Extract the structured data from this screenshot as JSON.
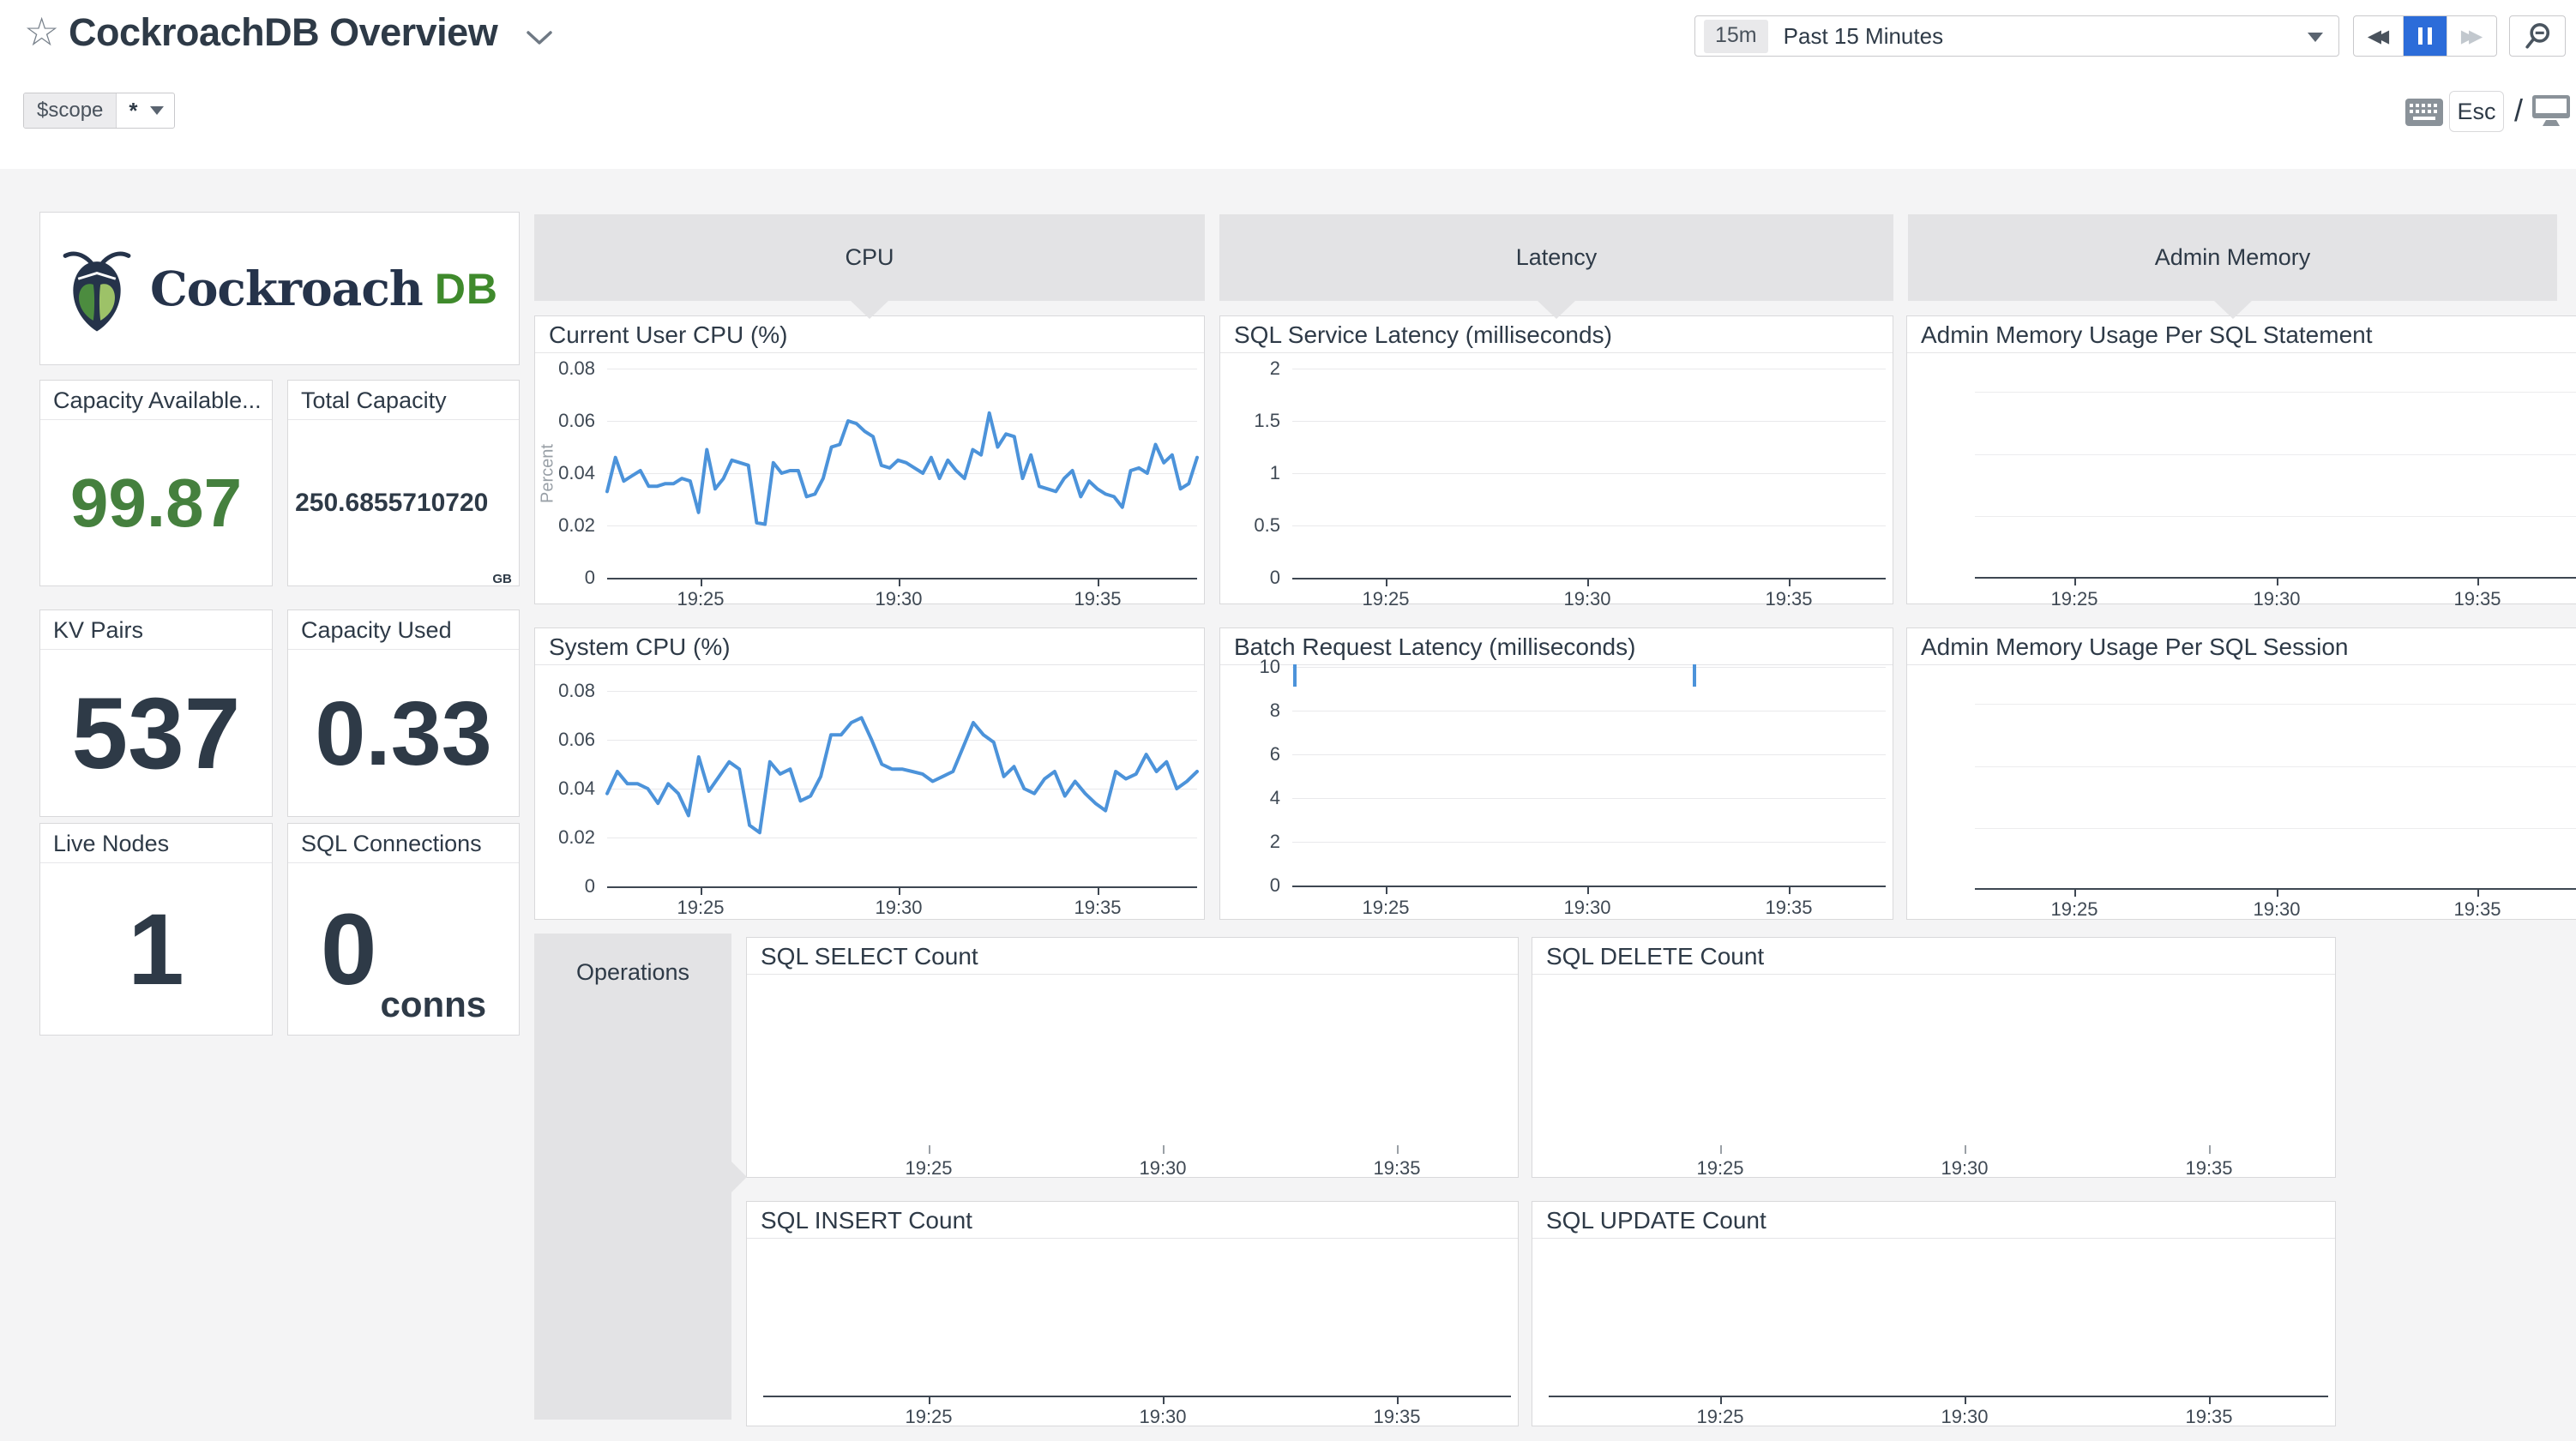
{
  "header": {
    "title": "CockroachDB Overview",
    "time_range": {
      "badge": "15m",
      "label": "Past 15 Minutes"
    },
    "shortcuts": {
      "esc": "Esc",
      "slash": "/"
    },
    "template_var": {
      "name": "$scope",
      "value": "*"
    }
  },
  "icons": {
    "star": "☆",
    "rewind": "◀◀",
    "fast_forward": "▶▶"
  },
  "logo": {
    "brand": "Cockroach",
    "suffix": "DB"
  },
  "stat_cards": [
    {
      "title": "Capacity Available...",
      "value": "99.87",
      "unit": ""
    },
    {
      "title": "Total Capacity",
      "value": "250.6855710720",
      "unit": "GB"
    },
    {
      "title": "KV Pairs",
      "value": "537",
      "unit": ""
    },
    {
      "title": "Capacity Used",
      "value": "0.33",
      "unit": ""
    },
    {
      "title": "Live Nodes",
      "value": "1",
      "unit": ""
    },
    {
      "title": "SQL Connections",
      "value": "0",
      "unit": "conns"
    }
  ],
  "groups": {
    "cpu": "CPU",
    "latency": "Latency",
    "admin_memory": "Admin Memory",
    "operations": "Operations"
  },
  "colors": {
    "accent_blue": "#4c93da",
    "green_value": "#45803e",
    "pause_active": "#2c6cd9",
    "logo_navy": "#25334a",
    "logo_green_dark": "#3f8a2c",
    "logo_green_light": "#7cb342"
  },
  "chart_data": [
    {
      "id": "current_user_cpu",
      "type": "line",
      "title": "Current User CPU (%)",
      "ylabel": "Percent",
      "ylim": [
        0,
        0.08
      ],
      "yticks": [
        0,
        0.02,
        0.04,
        0.06,
        0.08
      ],
      "xticks": [
        "19:25",
        "19:30",
        "19:35"
      ],
      "grid": true,
      "legend": "none",
      "series": [
        {
          "name": "user cpu",
          "color": "#4c93da",
          "values": [
            0.033,
            0.046,
            0.037,
            0.039,
            0.041,
            0.035,
            0.035,
            0.036,
            0.036,
            0.038,
            0.037,
            0.025,
            0.049,
            0.034,
            0.038,
            0.045,
            0.044,
            0.043,
            0.021,
            0.0205,
            0.044,
            0.04,
            0.041,
            0.041,
            0.031,
            0.032,
            0.038,
            0.05,
            0.051,
            0.06,
            0.059,
            0.056,
            0.054,
            0.043,
            0.042,
            0.045,
            0.044,
            0.042,
            0.04,
            0.046,
            0.038,
            0.045,
            0.041,
            0.038,
            0.049,
            0.047,
            0.063,
            0.05,
            0.055,
            0.054,
            0.038,
            0.047,
            0.035,
            0.034,
            0.033,
            0.038,
            0.041,
            0.031,
            0.037,
            0.034,
            0.032,
            0.031,
            0.027,
            0.041,
            0.042,
            0.04,
            0.051,
            0.044,
            0.047,
            0.034,
            0.036,
            0.046
          ]
        }
      ]
    },
    {
      "id": "system_cpu",
      "type": "line",
      "title": "System CPU (%)",
      "ylim": [
        0,
        0.08
      ],
      "yticks": [
        0,
        0.02,
        0.04,
        0.06,
        0.08
      ],
      "xticks": [
        "19:25",
        "19:30",
        "19:35"
      ],
      "grid": true,
      "legend": "none",
      "series": [
        {
          "name": "system cpu",
          "color": "#4c93da",
          "values": [
            0.038,
            0.047,
            0.042,
            0.042,
            0.04,
            0.034,
            0.042,
            0.038,
            0.029,
            0.053,
            0.039,
            0.045,
            0.051,
            0.048,
            0.025,
            0.022,
            0.051,
            0.046,
            0.048,
            0.035,
            0.037,
            0.045,
            0.062,
            0.062,
            0.067,
            0.069,
            0.06,
            0.05,
            0.048,
            0.048,
            0.047,
            0.046,
            0.043,
            0.045,
            0.047,
            0.057,
            0.067,
            0.062,
            0.059,
            0.045,
            0.049,
            0.04,
            0.038,
            0.044,
            0.047,
            0.037,
            0.043,
            0.038,
            0.034,
            0.031,
            0.047,
            0.044,
            0.046,
            0.054,
            0.047,
            0.051,
            0.04,
            0.043,
            0.047
          ]
        }
      ]
    },
    {
      "id": "sql_service_latency",
      "type": "line",
      "title": "SQL Service Latency (milliseconds)",
      "ylim": [
        0,
        2
      ],
      "yticks": [
        0,
        0.5,
        1,
        1.5,
        2
      ],
      "xticks": [
        "19:25",
        "19:30",
        "19:35"
      ],
      "grid": true,
      "series": []
    },
    {
      "id": "batch_request_latency",
      "type": "line",
      "title": "Batch Request Latency (milliseconds)",
      "ylim": [
        0,
        10
      ],
      "yticks": [
        0,
        2,
        4,
        6,
        8,
        10
      ],
      "xticks": [
        "19:25",
        "19:30",
        "19:35"
      ],
      "grid": true,
      "series": [],
      "spikes": [
        {
          "x_frac": 0.001,
          "value": 10,
          "clipped": true
        },
        {
          "x_frac": 0.675,
          "value": 10,
          "clipped": true
        }
      ]
    },
    {
      "id": "admin_memory_per_sql_statement",
      "type": "line",
      "title": "Admin Memory Usage Per SQL Statement",
      "ylim": [
        0,
        1
      ],
      "yticks": [],
      "xticks": [
        "19:25",
        "19:30",
        "19:35"
      ],
      "grid": true,
      "series": []
    },
    {
      "id": "admin_memory_per_sql_session",
      "type": "line",
      "title": "Admin Memory Usage Per SQL Session",
      "ylim": [
        0,
        1
      ],
      "yticks": [],
      "xticks": [
        "19:25",
        "19:30",
        "19:35"
      ],
      "grid": true,
      "series": []
    },
    {
      "id": "sql_select_count",
      "type": "line",
      "title": "SQL SELECT Count",
      "ylim": [
        0,
        1
      ],
      "yticks": [],
      "xticks": [
        "19:25",
        "19:30",
        "19:35"
      ],
      "grid": false,
      "series": []
    },
    {
      "id": "sql_delete_count",
      "type": "line",
      "title": "SQL DELETE Count",
      "ylim": [
        0,
        1
      ],
      "yticks": [],
      "xticks": [
        "19:25",
        "19:30",
        "19:35"
      ],
      "grid": false,
      "series": []
    },
    {
      "id": "sql_insert_count",
      "type": "line",
      "title": "SQL INSERT Count",
      "ylim": [
        0,
        1
      ],
      "yticks": [],
      "xticks": [
        "19:25",
        "19:30",
        "19:35"
      ],
      "grid": false,
      "series": []
    },
    {
      "id": "sql_update_count",
      "type": "line",
      "title": "SQL UPDATE Count",
      "ylim": [
        0,
        1
      ],
      "yticks": [],
      "xticks": [
        "19:25",
        "19:30",
        "19:35"
      ],
      "grid": false,
      "series": []
    }
  ]
}
